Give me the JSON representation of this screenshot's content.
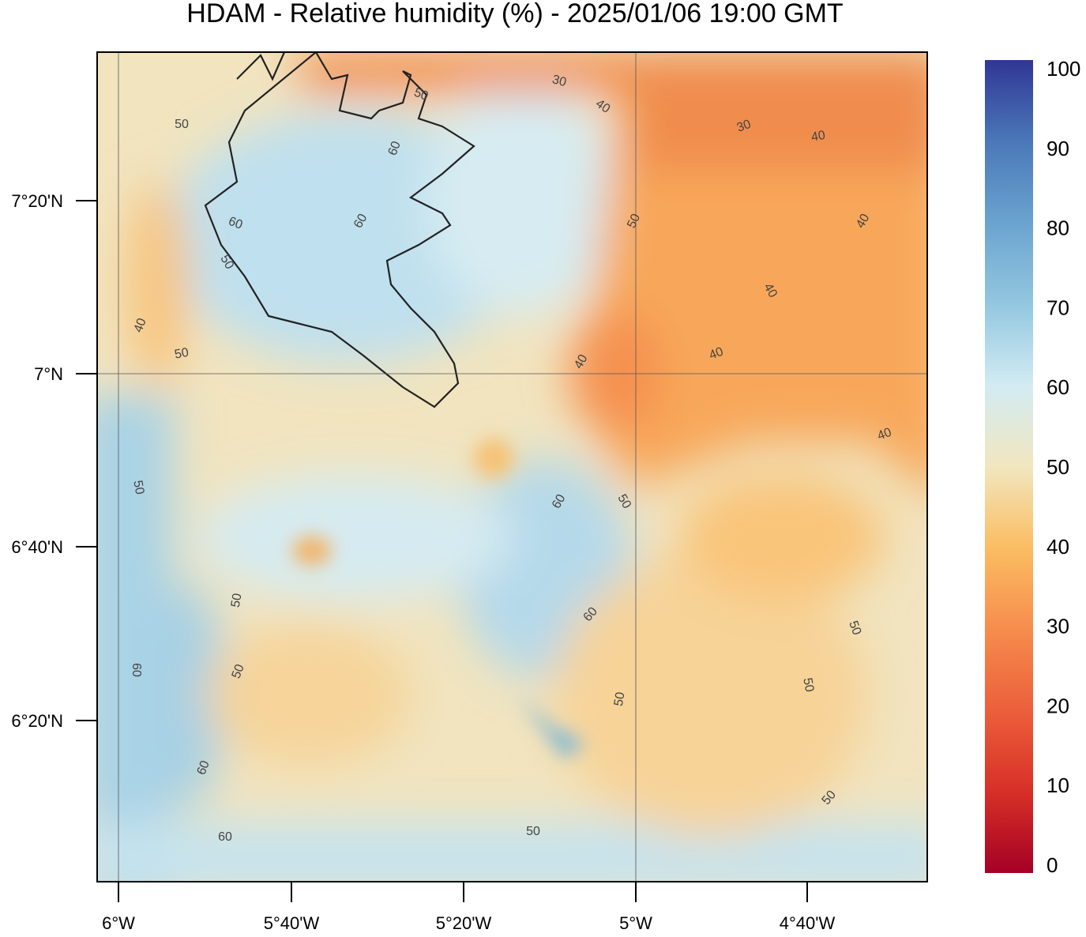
{
  "map": {
    "title": "HDAM - Relative humidity (%)  -  2025/01/06  19:00 GMT",
    "x_ticks": [
      "6°W",
      "5°40'W",
      "5°20'W",
      "5°W",
      "4°40'W"
    ],
    "y_ticks": [
      "7°20'N",
      "7°N",
      "6°40'N",
      "6°20'N"
    ],
    "colorbar": {
      "range": [
        0,
        100
      ],
      "ticks": [
        0,
        10,
        20,
        30,
        40,
        50,
        60,
        70,
        80,
        90,
        100
      ]
    },
    "contour_labels": [
      30,
      40,
      30,
      40,
      50,
      50,
      60,
      50,
      40,
      60,
      60,
      50,
      40,
      40,
      50,
      40,
      40,
      40,
      50,
      60,
      50,
      50,
      60,
      50,
      60,
      50,
      50,
      50,
      60,
      50,
      50,
      60
    ]
  }
}
